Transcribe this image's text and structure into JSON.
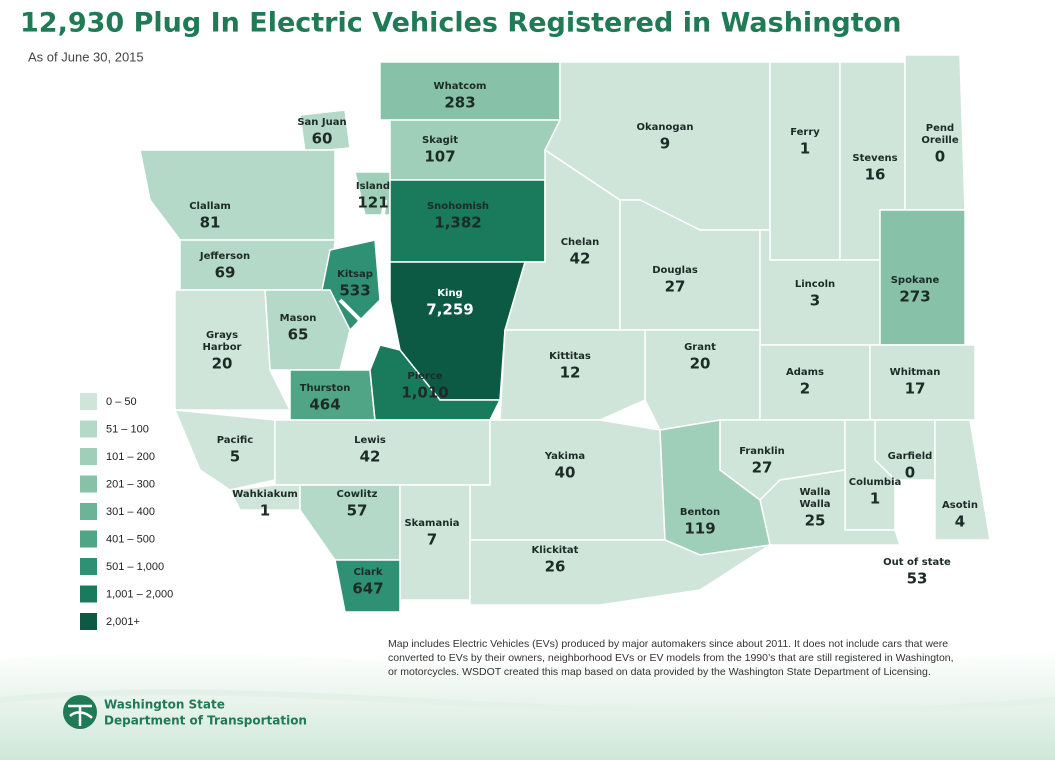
{
  "header": {
    "title": "12,930 Plug In Electric Vehicles Registered in Washington",
    "subtitle": "As of June 30, 2015"
  },
  "counties": [
    {
      "name": "Whatcom",
      "count": 283,
      "color": "#86c1a8"
    },
    {
      "name": "San Juan",
      "count": 60,
      "color": "#b5d9c8"
    },
    {
      "name": "Skagit",
      "count": 107,
      "color": "#9fcfb9"
    },
    {
      "name": "Okanogan",
      "count": 9,
      "color": "#cfe5da"
    },
    {
      "name": "Ferry",
      "count": 1,
      "color": "#cfe5da"
    },
    {
      "name": "Stevens",
      "count": 16,
      "color": "#cfe5da"
    },
    {
      "name": "Pend Oreille",
      "count": 0,
      "color": "#cfe5da"
    },
    {
      "name": "Clallam",
      "count": 81,
      "color": "#b5d9c8"
    },
    {
      "name": "Island",
      "count": 121,
      "color": "#9fcfb9"
    },
    {
      "name": "Snohomish",
      "count": {
        "value": 1382,
        "label": "1,382"
      },
      "color": "#1a7a5c"
    },
    {
      "name": "Jefferson",
      "count": 69,
      "color": "#b5d9c8"
    },
    {
      "name": "Chelan",
      "count": 42,
      "color": "#cfe5da"
    },
    {
      "name": "Douglas",
      "count": 27,
      "color": "#cfe5da"
    },
    {
      "name": "Lincoln",
      "count": 3,
      "color": "#cfe5da"
    },
    {
      "name": "Spokane",
      "count": 273,
      "color": "#86c1a8"
    },
    {
      "name": "Kitsap",
      "count": 533,
      "color": "#2f9173"
    },
    {
      "name": "King",
      "count": {
        "value": 7259,
        "label": "7,259"
      },
      "color": "#0d5a44"
    },
    {
      "name": "Mason",
      "count": 65,
      "color": "#b5d9c8"
    },
    {
      "name": "Grays Harbor",
      "count": 20,
      "color": "#cfe5da"
    },
    {
      "name": "Grant",
      "count": 20,
      "color": "#cfe5da"
    },
    {
      "name": "Kittitas",
      "count": 12,
      "color": "#cfe5da"
    },
    {
      "name": "Adams",
      "count": 2,
      "color": "#cfe5da"
    },
    {
      "name": "Whitman",
      "count": 17,
      "color": "#cfe5da"
    },
    {
      "name": "Thurston",
      "count": 464,
      "color": "#4fa585"
    },
    {
      "name": "Pierce",
      "count": {
        "value": 1010,
        "label": "1,010"
      },
      "color": "#1a7a5c"
    },
    {
      "name": "Pacific",
      "count": 5,
      "color": "#cfe5da"
    },
    {
      "name": "Lewis",
      "count": 42,
      "color": "#cfe5da"
    },
    {
      "name": "Yakima",
      "count": 40,
      "color": "#cfe5da"
    },
    {
      "name": "Franklin",
      "count": 27,
      "color": "#cfe5da"
    },
    {
      "name": "Garfield",
      "count": 0,
      "color": "#cfe5da"
    },
    {
      "name": "Columbia",
      "count": 1,
      "color": "#cfe5da"
    },
    {
      "name": "Wahkiakum",
      "count": 1,
      "color": "#cfe5da"
    },
    {
      "name": "Cowlitz",
      "count": 57,
      "color": "#b5d9c8"
    },
    {
      "name": "Walla Walla",
      "count": 25,
      "color": "#cfe5da"
    },
    {
      "name": "Asotin",
      "count": 4,
      "color": "#cfe5da"
    },
    {
      "name": "Benton",
      "count": 119,
      "color": "#9fcfb9"
    },
    {
      "name": "Skamania",
      "count": 7,
      "color": "#cfe5da"
    },
    {
      "name": "Klickitat",
      "count": 26,
      "color": "#cfe5da"
    },
    {
      "name": "Clark",
      "count": 647,
      "color": "#2f9173"
    },
    {
      "name": "Out of state",
      "count": 53
    }
  ],
  "legend": [
    {
      "label": "0 – 50",
      "color": "#cfe5da"
    },
    {
      "label": "51 – 100",
      "color": "#b5d9c8"
    },
    {
      "label": "101 – 200",
      "color": "#9fcfb9"
    },
    {
      "label": "201 – 300",
      "color": "#86c1a8"
    },
    {
      "label": "301 – 400",
      "color": "#6bb497"
    },
    {
      "label": "401 – 500",
      "color": "#4fa585"
    },
    {
      "label": "501 – 1,000",
      "color": "#2f9173"
    },
    {
      "label": "1,001 – 2,000",
      "color": "#1a7a5c"
    },
    {
      "label": "2,001+",
      "color": "#0d5a44"
    }
  ],
  "note": [
    "Map includes Electric Vehicles (EVs) produced by major automakers since about 2011. It does not include cars that were",
    "converted to EVs by their owners, neighborhood EVs or EV models from the 1990’s that are still registered in Washington,",
    "or motorcycles. WSDOT created this map based on data provided by the Washington State Department of Licensing."
  ],
  "logo": {
    "line1": "Washington State",
    "line2": "Department of Transportation"
  }
}
